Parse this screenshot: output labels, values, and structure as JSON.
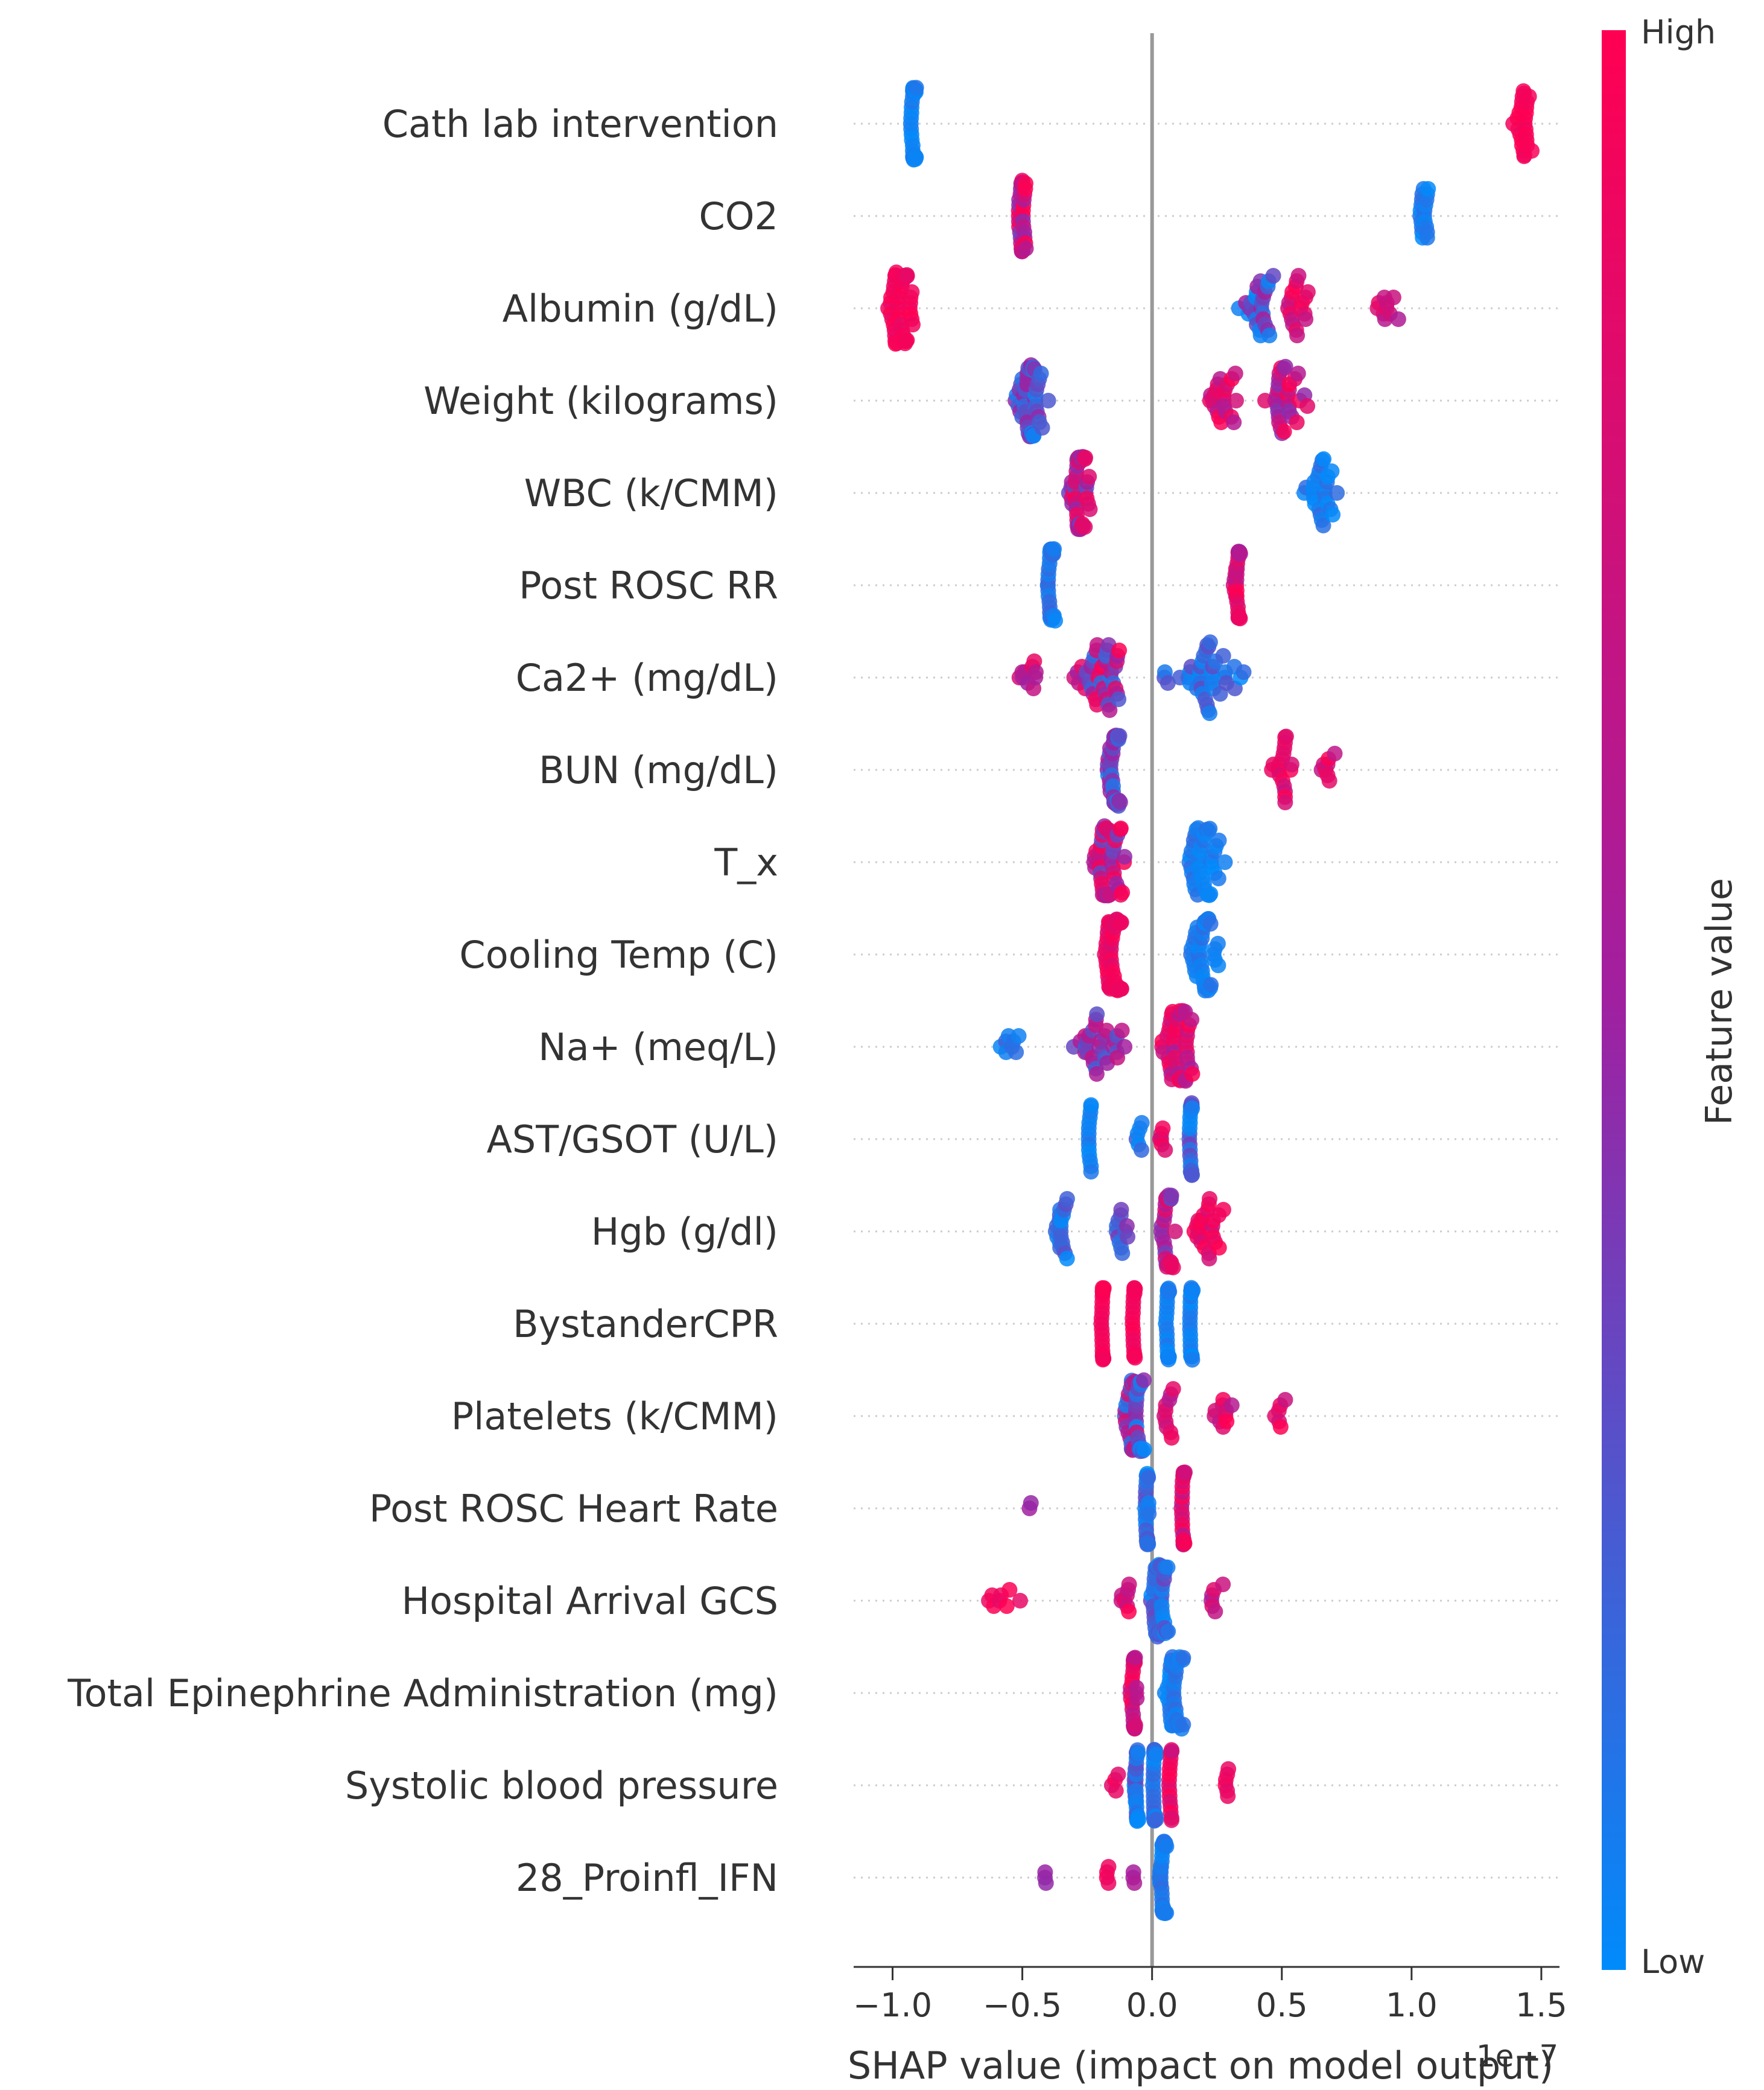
{
  "chart_data": {
    "type": "scatter",
    "subtype": "shap-beeswarm",
    "title": "",
    "xlabel": "SHAP value (impact on model output)",
    "xlim": [
      -1.15,
      1.57
    ],
    "xticks": [
      -1.0,
      -0.5,
      0.0,
      0.5,
      1.0,
      1.5
    ],
    "xtick_labels": [
      "−1.0",
      "−0.5",
      "0.0",
      "0.5",
      "1.0",
      "1.5"
    ],
    "offset_label": "1e−7",
    "colorbar": {
      "label": "Feature value",
      "high_label": "High",
      "low_label": "Low",
      "high_color": "#ff0052",
      "low_color": "#008bfb",
      "mid_color": "#a020a0"
    },
    "features": [
      {
        "name": "Cath lab intervention",
        "clusters": [
          {
            "center": -0.92,
            "width": 0.02,
            "count": 40,
            "color": [
              0.0,
              0.1
            ]
          },
          {
            "center": 1.43,
            "width": 0.05,
            "count": 26,
            "color": [
              0.92,
              1.0
            ]
          }
        ]
      },
      {
        "name": "CO2",
        "clusters": [
          {
            "center": -0.5,
            "width": 0.02,
            "count": 40,
            "color": [
              0.35,
              1.0
            ]
          },
          {
            "center": 1.05,
            "width": 0.03,
            "count": 20,
            "color": [
              0.0,
              0.15
            ]
          }
        ]
      },
      {
        "name": "Albumin (g/dL)",
        "clusters": [
          {
            "center": -0.97,
            "width": 0.07,
            "count": 46,
            "color": [
              0.85,
              1.0
            ]
          },
          {
            "center": 0.42,
            "width": 0.09,
            "count": 26,
            "color": [
              0.0,
              0.6
            ]
          },
          {
            "center": 0.56,
            "width": 0.05,
            "count": 18,
            "color": [
              0.6,
              1.0
            ]
          },
          {
            "center": 0.9,
            "width": 0.07,
            "count": 10,
            "color": [
              0.55,
              0.9
            ]
          }
        ]
      },
      {
        "name": "Weight (kilograms)",
        "clusters": [
          {
            "center": -0.47,
            "width": 0.08,
            "count": 46,
            "color": [
              0.0,
              0.55
            ]
          },
          {
            "center": 0.27,
            "width": 0.08,
            "count": 22,
            "color": [
              0.6,
              1.0
            ]
          },
          {
            "center": 0.52,
            "width": 0.1,
            "count": 30,
            "color": [
              0.4,
              1.0
            ]
          }
        ]
      },
      {
        "name": "WBC (k/CMM)",
        "clusters": [
          {
            "center": -0.28,
            "width": 0.06,
            "count": 46,
            "color": [
              0.3,
              1.0
            ]
          },
          {
            "center": 0.65,
            "width": 0.09,
            "count": 26,
            "color": [
              0.0,
              0.15
            ]
          }
        ]
      },
      {
        "name": "Post ROSC RR",
        "clusters": [
          {
            "center": -0.39,
            "width": 0.02,
            "count": 36,
            "color": [
              0.0,
              0.2
            ]
          },
          {
            "center": 0.33,
            "width": 0.02,
            "count": 30,
            "color": [
              0.5,
              1.0
            ]
          }
        ]
      },
      {
        "name": "Ca2+ (mg/dL)",
        "clusters": [
          {
            "center": -0.47,
            "width": 0.08,
            "count": 10,
            "color": [
              0.5,
              1.0
            ]
          },
          {
            "center": -0.2,
            "width": 0.12,
            "count": 40,
            "color": [
              0.1,
              1.0
            ]
          },
          {
            "center": 0.2,
            "width": 0.22,
            "count": 40,
            "color": [
              0.0,
              0.3
            ]
          }
        ]
      },
      {
        "name": "BUN (mg/dL)",
        "clusters": [
          {
            "center": -0.15,
            "width": 0.04,
            "count": 40,
            "color": [
              0.0,
              0.6
            ]
          },
          {
            "center": 0.5,
            "width": 0.07,
            "count": 18,
            "color": [
              0.7,
              1.0
            ]
          },
          {
            "center": 0.67,
            "width": 0.04,
            "count": 8,
            "color": [
              0.6,
              1.0
            ]
          }
        ]
      },
      {
        "name": "T_x",
        "clusters": [
          {
            "center": -0.18,
            "width": 0.11,
            "count": 46,
            "color": [
              0.3,
              1.0
            ]
          },
          {
            "center": 0.2,
            "width": 0.12,
            "count": 40,
            "color": [
              0.0,
              0.15
            ]
          }
        ]
      },
      {
        "name": "Cooling Temp (C)",
        "clusters": [
          {
            "center": -0.15,
            "width": 0.05,
            "count": 46,
            "color": [
              0.8,
              1.0
            ]
          },
          {
            "center": 0.2,
            "width": 0.08,
            "count": 40,
            "color": [
              0.0,
              0.15
            ]
          }
        ]
      },
      {
        "name": "Na+ (meq/L)",
        "clusters": [
          {
            "center": -0.55,
            "width": 0.06,
            "count": 8,
            "color": [
              0.0,
              0.2
            ]
          },
          {
            "center": -0.2,
            "width": 0.14,
            "count": 30,
            "color": [
              0.2,
              0.7
            ]
          },
          {
            "center": 0.1,
            "width": 0.1,
            "count": 46,
            "color": [
              0.5,
              1.0
            ]
          }
        ]
      },
      {
        "name": "AST/GSOT (U/L)",
        "clusters": [
          {
            "center": -0.24,
            "width": 0.01,
            "count": 14,
            "color": [
              0.0,
              0.1
            ]
          },
          {
            "center": -0.05,
            "width": 0.02,
            "count": 6,
            "color": [
              0.0,
              0.25
            ]
          },
          {
            "center": 0.04,
            "width": 0.02,
            "count": 6,
            "color": [
              0.7,
              1.0
            ]
          },
          {
            "center": 0.15,
            "width": 0.01,
            "count": 24,
            "color": [
              0.0,
              0.35
            ]
          }
        ]
      },
      {
        "name": "Hgb (g/dl)",
        "clusters": [
          {
            "center": -0.35,
            "width": 0.03,
            "count": 20,
            "color": [
              0.0,
              0.3
            ]
          },
          {
            "center": -0.12,
            "width": 0.04,
            "count": 12,
            "color": [
              0.1,
              0.5
            ]
          },
          {
            "center": 0.06,
            "width": 0.04,
            "count": 30,
            "color": [
              0.3,
              1.0
            ]
          },
          {
            "center": 0.22,
            "width": 0.09,
            "count": 24,
            "color": [
              0.7,
              1.0
            ]
          }
        ]
      },
      {
        "name": "BystanderCPR",
        "clusters": [
          {
            "center": -0.19,
            "width": 0.01,
            "count": 26,
            "color": [
              0.92,
              1.0
            ]
          },
          {
            "center": -0.07,
            "width": 0.01,
            "count": 20,
            "color": [
              0.9,
              1.0
            ]
          },
          {
            "center": 0.06,
            "width": 0.01,
            "count": 26,
            "color": [
              0.0,
              0.1
            ]
          },
          {
            "center": 0.15,
            "width": 0.01,
            "count": 26,
            "color": [
              0.0,
              0.1
            ]
          }
        ]
      },
      {
        "name": "Platelets (k/CMM)",
        "clusters": [
          {
            "center": -0.07,
            "width": 0.06,
            "count": 46,
            "color": [
              0.0,
              0.8
            ]
          },
          {
            "center": 0.06,
            "width": 0.03,
            "count": 10,
            "color": [
              0.6,
              1.0
            ]
          },
          {
            "center": 0.28,
            "width": 0.07,
            "count": 10,
            "color": [
              0.6,
              1.0
            ]
          },
          {
            "center": 0.49,
            "width": 0.04,
            "count": 6,
            "color": [
              0.7,
              1.0
            ]
          }
        ]
      },
      {
        "name": "Post ROSC Heart Rate",
        "clusters": [
          {
            "center": -0.47,
            "width": 0.005,
            "count": 2,
            "color": [
              0.45,
              0.55
            ]
          },
          {
            "center": -0.02,
            "width": 0.01,
            "count": 32,
            "color": [
              0.0,
              0.3
            ]
          },
          {
            "center": 0.12,
            "width": 0.01,
            "count": 28,
            "color": [
              0.6,
              1.0
            ]
          }
        ]
      },
      {
        "name": "Hospital Arrival GCS",
        "clusters": [
          {
            "center": -0.58,
            "width": 0.12,
            "count": 8,
            "color": [
              0.85,
              1.0
            ]
          },
          {
            "center": -0.1,
            "width": 0.03,
            "count": 8,
            "color": [
              0.6,
              1.0
            ]
          },
          {
            "center": 0.03,
            "width": 0.05,
            "count": 46,
            "color": [
              0.0,
              0.35
            ]
          },
          {
            "center": 0.25,
            "width": 0.04,
            "count": 6,
            "color": [
              0.5,
              0.9
            ]
          }
        ]
      },
      {
        "name": "Total Epinephrine Administration (mg)",
        "clusters": [
          {
            "center": -0.07,
            "width": 0.02,
            "count": 30,
            "color": [
              0.5,
              1.0
            ]
          },
          {
            "center": 0.08,
            "width": 0.05,
            "count": 40,
            "color": [
              0.0,
              0.15
            ]
          }
        ]
      },
      {
        "name": "Systolic blood pressure",
        "clusters": [
          {
            "center": -0.14,
            "width": 0.02,
            "count": 4,
            "color": [
              0.7,
              1.0
            ]
          },
          {
            "center": -0.06,
            "width": 0.01,
            "count": 30,
            "color": [
              0.0,
              0.3
            ]
          },
          {
            "center": 0.01,
            "width": 0.01,
            "count": 30,
            "color": [
              0.0,
              0.2
            ]
          },
          {
            "center": 0.07,
            "width": 0.01,
            "count": 16,
            "color": [
              0.7,
              1.0
            ]
          },
          {
            "center": 0.29,
            "width": 0.02,
            "count": 6,
            "color": [
              0.85,
              1.0
            ]
          }
        ]
      },
      {
        "name": "28_Proinfl_IFN",
        "clusters": [
          {
            "center": -0.41,
            "width": 0.005,
            "count": 3,
            "color": [
              0.45,
              0.55
            ]
          },
          {
            "center": -0.17,
            "width": 0.01,
            "count": 4,
            "color": [
              0.9,
              1.0
            ]
          },
          {
            "center": -0.07,
            "width": 0.01,
            "count": 3,
            "color": [
              0.45,
              0.6
            ]
          },
          {
            "center": 0.04,
            "width": 0.02,
            "count": 40,
            "color": [
              0.0,
              0.15
            ]
          }
        ]
      }
    ]
  }
}
